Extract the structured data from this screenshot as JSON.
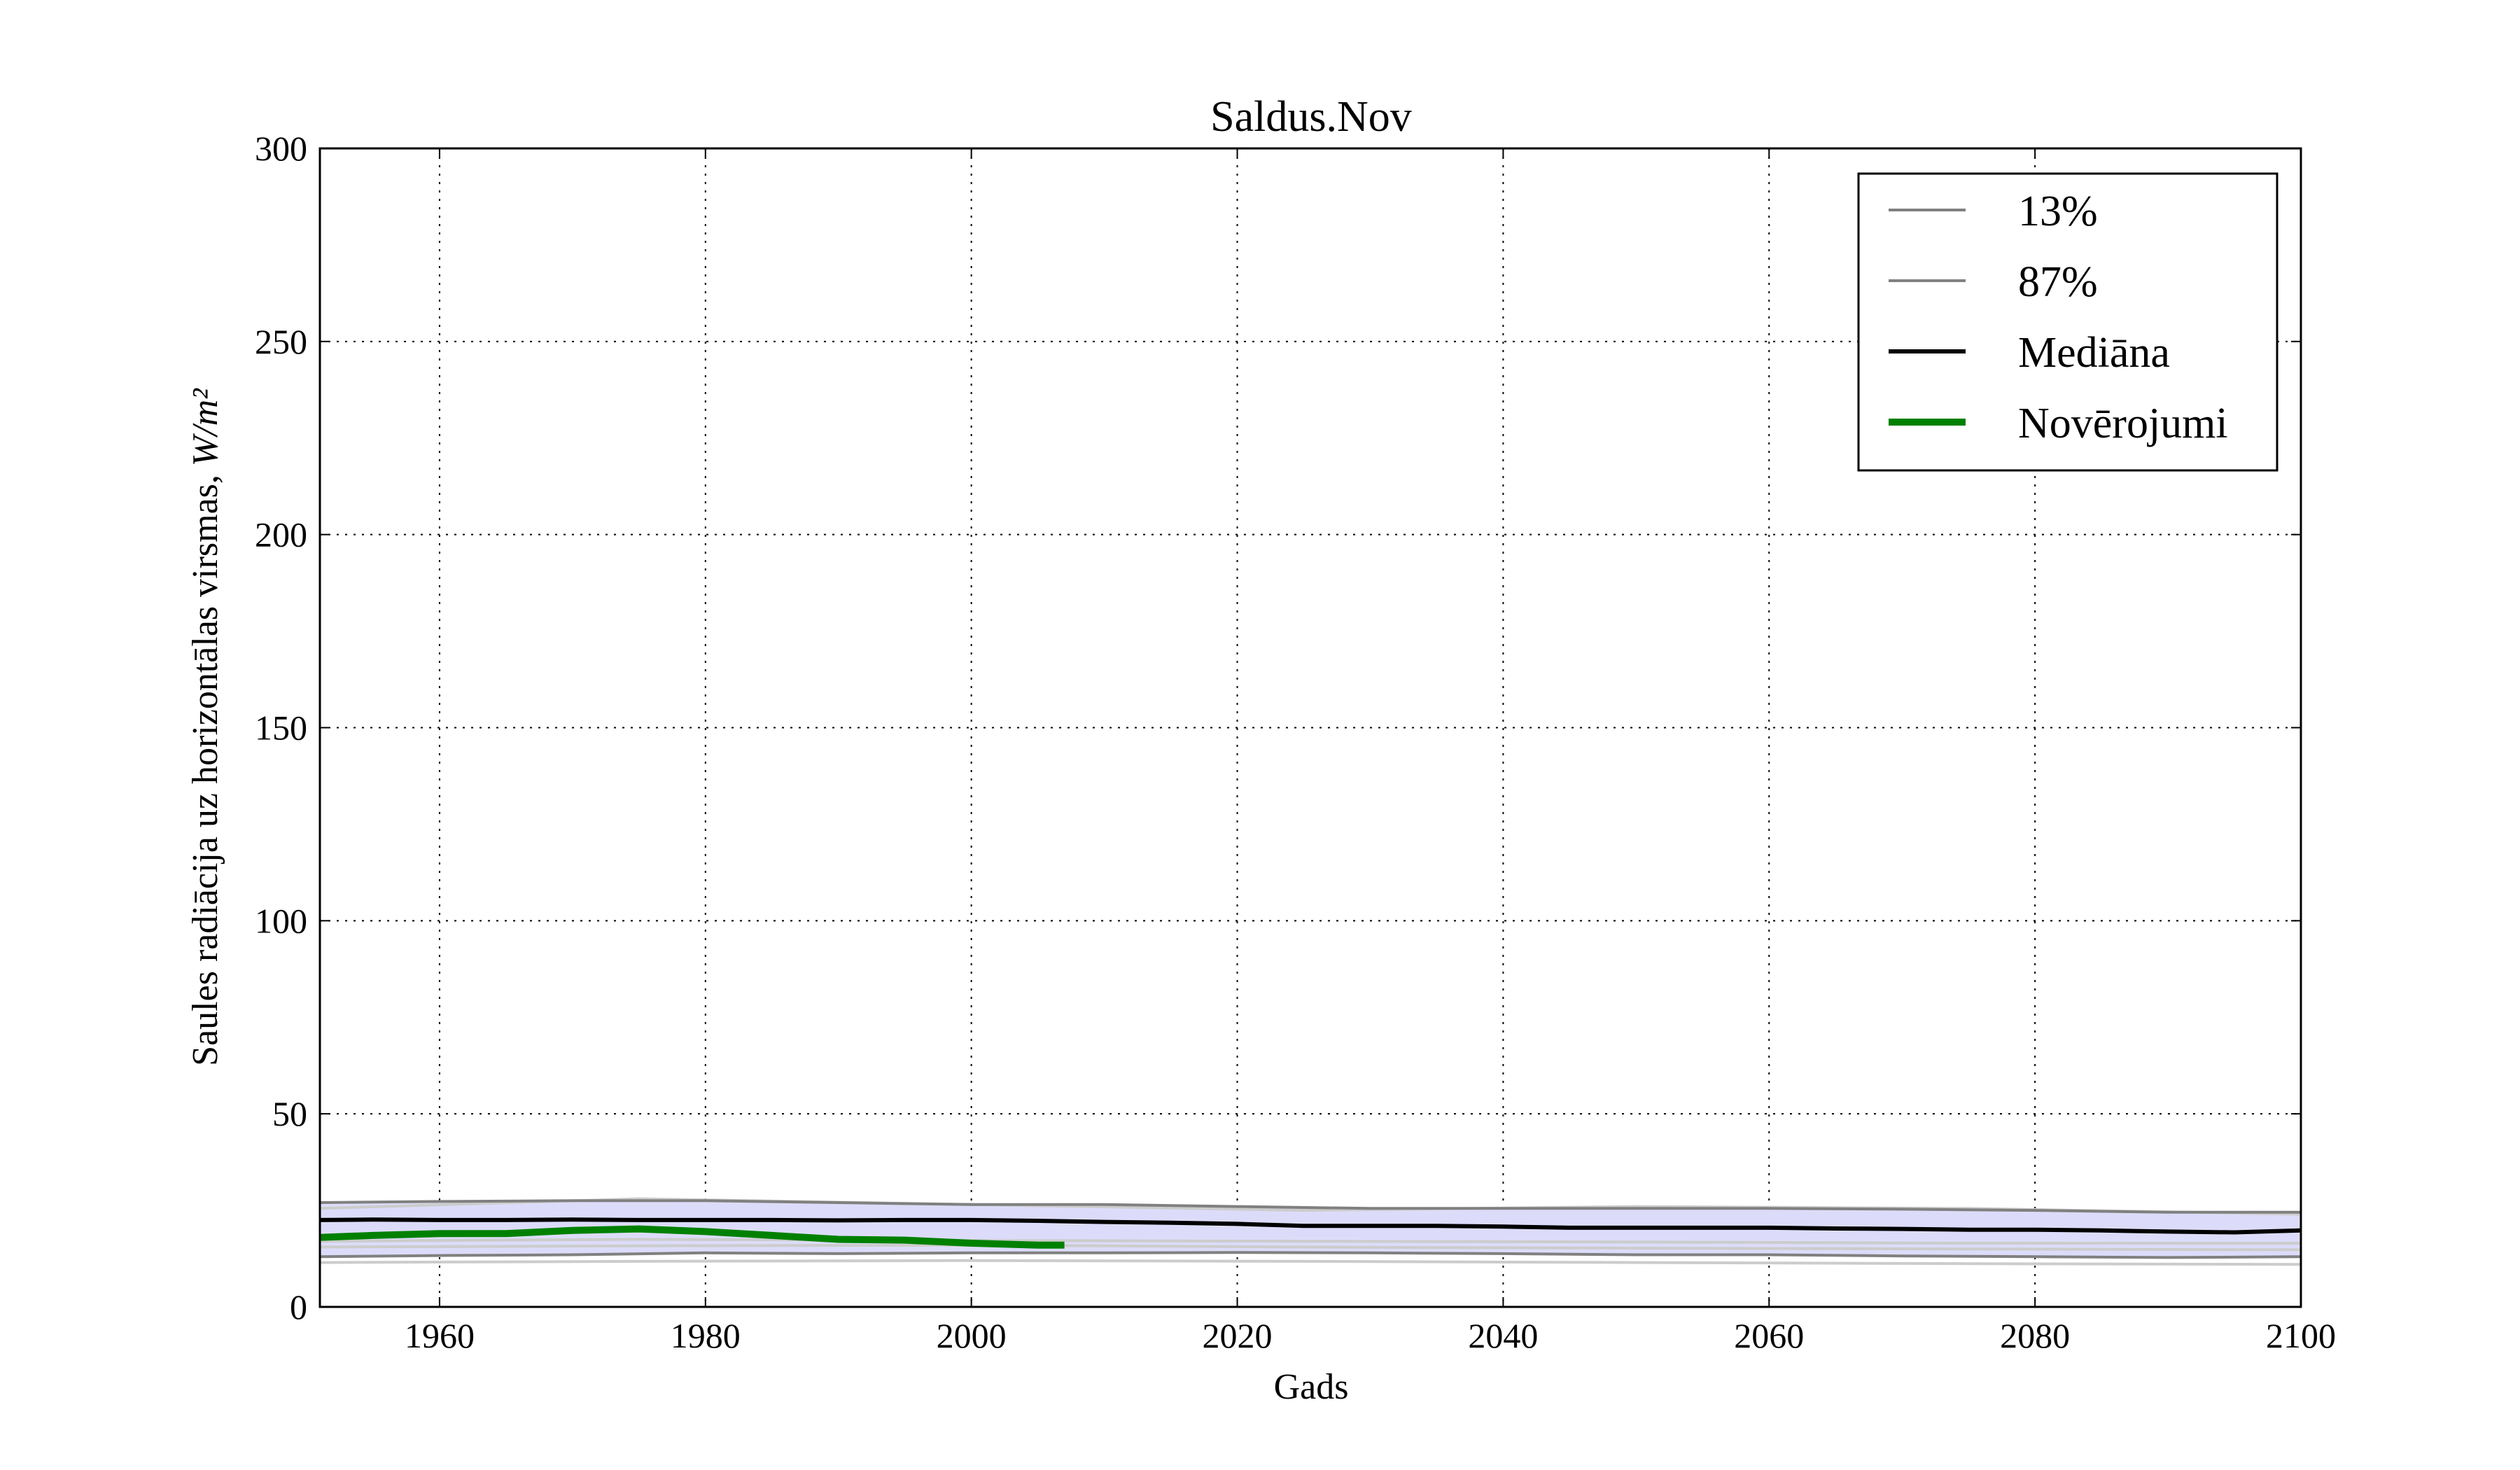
{
  "chart_data": {
    "type": "line",
    "title": "Saldus.Nov",
    "xlabel": "Gads",
    "ylabel": "Saules radiācija uz horizontālas virsmas,",
    "ylabel_unit": "W/m²",
    "xlim": [
      1951,
      2100
    ],
    "ylim": [
      0,
      300
    ],
    "x_ticks": [
      1960,
      1980,
      2000,
      2020,
      2040,
      2060,
      2080,
      2100
    ],
    "y_ticks": [
      0,
      50,
      100,
      150,
      200,
      250,
      300
    ],
    "grid": true,
    "grid_style": "dotted",
    "legend_position": "upper-right",
    "colors": {
      "band_fill": "#dcdcfa",
      "percentile_line": "#808080",
      "ensemble_line": "#cccccc",
      "median": "#000000",
      "observations": "#008000"
    },
    "band": {
      "name": "13%-87%",
      "x": [
        1951,
        1960,
        1970,
        1980,
        1990,
        2000,
        2010,
        2020,
        2030,
        2040,
        2050,
        2060,
        2070,
        2080,
        2090,
        2100
      ],
      "lower": [
        13,
        13.3,
        13.5,
        14,
        13.8,
        14,
        14,
        14.1,
        14,
        13.8,
        13.5,
        13.5,
        13.2,
        13,
        12.8,
        13
      ],
      "upper": [
        27,
        27.3,
        27.5,
        27.5,
        27,
        26.5,
        26.5,
        26,
        25.5,
        25.5,
        25.5,
        25.5,
        25.3,
        25,
        24.5,
        24.5
      ]
    },
    "series": [
      {
        "name": "13%",
        "x": [
          1951,
          1960,
          1970,
          1980,
          1990,
          2000,
          2010,
          2020,
          2030,
          2040,
          2050,
          2060,
          2070,
          2080,
          2090,
          2100
        ],
        "values": [
          13,
          13.3,
          13.5,
          14,
          13.8,
          14,
          14,
          14.1,
          14,
          13.8,
          13.5,
          13.5,
          13.2,
          13,
          12.8,
          13
        ]
      },
      {
        "name": "87%",
        "x": [
          1951,
          1960,
          1970,
          1980,
          1990,
          2000,
          2010,
          2020,
          2030,
          2040,
          2050,
          2060,
          2070,
          2080,
          2090,
          2100
        ],
        "values": [
          27,
          27.3,
          27.5,
          27.5,
          27,
          26.5,
          26.5,
          26,
          25.5,
          25.5,
          25.5,
          25.5,
          25.3,
          25,
          24.5,
          24.5
        ]
      },
      {
        "name": "Mediāna",
        "x": [
          1951,
          1955,
          1960,
          1965,
          1970,
          1975,
          1980,
          1985,
          1990,
          1995,
          2000,
          2005,
          2010,
          2015,
          2020,
          2025,
          2030,
          2035,
          2040,
          2045,
          2050,
          2055,
          2060,
          2065,
          2070,
          2075,
          2080,
          2085,
          2090,
          2095,
          2100
        ],
        "values": [
          22.5,
          22.6,
          22.5,
          22.5,
          22.6,
          22.5,
          22.5,
          22.5,
          22.4,
          22.5,
          22.5,
          22.3,
          22,
          21.8,
          21.5,
          21,
          21,
          21,
          20.8,
          20.5,
          20.5,
          20.5,
          20.5,
          20.3,
          20.2,
          20,
          20,
          19.8,
          19.5,
          19.3,
          19.8
        ]
      },
      {
        "name": "Novērojumi",
        "x": [
          1951,
          1955,
          1960,
          1965,
          1970,
          1975,
          1980,
          1985,
          1990,
          1995,
          2000,
          2005,
          2007
        ],
        "values": [
          18,
          18.5,
          19,
          19,
          19.8,
          20.2,
          19.5,
          18.5,
          17.5,
          17.3,
          16.5,
          16,
          16
        ]
      }
    ],
    "ensemble_members": [
      {
        "x": [
          1951,
          1975,
          2000,
          2025,
          2050,
          2075,
          2100
        ],
        "values": [
          15.5,
          15.8,
          16,
          15.5,
          15.2,
          15,
          14.8
        ]
      },
      {
        "x": [
          1951,
          1975,
          2000,
          2025,
          2050,
          2075,
          2100
        ],
        "values": [
          11.5,
          11.8,
          12,
          11.8,
          11.5,
          11.2,
          11
        ]
      },
      {
        "x": [
          1951,
          1975,
          2000,
          2025,
          2050,
          2075,
          2100
        ],
        "values": [
          25.5,
          28,
          26.5,
          25,
          26,
          25.5,
          24
        ]
      },
      {
        "x": [
          1951,
          1975,
          2000,
          2025,
          2050,
          2075,
          2100
        ],
        "values": [
          17,
          17.5,
          17.2,
          17,
          16.8,
          16.5,
          16.5
        ]
      }
    ],
    "legend": [
      "13%",
      "87%",
      "Mediāna",
      "Novērojumi"
    ]
  }
}
